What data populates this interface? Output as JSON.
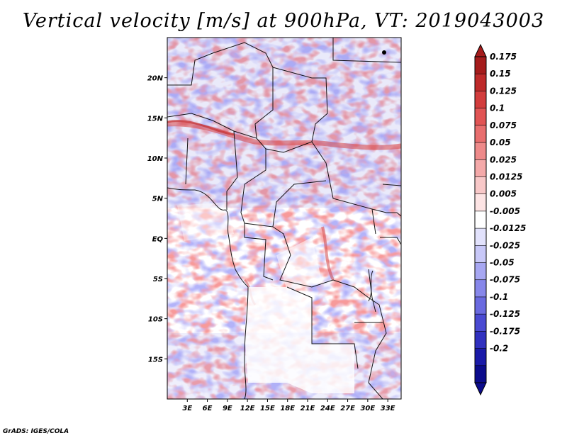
{
  "title": "Vertical velocity [m/s] at 900hPa, VT: 2019043003",
  "credit": "GrADS: IGES/COLA",
  "map": {
    "lon_range": [
      0,
      35
    ],
    "lat_range": [
      -20,
      25
    ],
    "lon_ticks": [
      "3E",
      "6E",
      "9E",
      "12E",
      "15E",
      "18E",
      "21E",
      "24E",
      "27E",
      "30E",
      "33E"
    ],
    "lat_ticks": [
      "20N",
      "15N",
      "10N",
      "5N",
      "EQ",
      "5S",
      "10S",
      "15S"
    ]
  },
  "colorbar": {
    "labels": [
      "0.175",
      "0.15",
      "0.125",
      "0.1",
      "0.075",
      "0.05",
      "0.025",
      "0.0125",
      "0.005",
      "-0.005",
      "-0.0125",
      "-0.025",
      "-0.05",
      "-0.075",
      "-0.1",
      "-0.125",
      "-0.175",
      "-0.2"
    ],
    "colors": [
      "#a51c1c",
      "#be2a2a",
      "#d23c3c",
      "#e15454",
      "#e86e6e",
      "#ee8a8a",
      "#f4a9a9",
      "#f8c8c8",
      "#fde4e4",
      "#ffffff",
      "#e2e2fc",
      "#c8c8f8",
      "#a7a7f2",
      "#8787ea",
      "#6a6ae0",
      "#4a4ad2",
      "#3030bf",
      "#1a1aa8",
      "#0c0c8c"
    ],
    "top_color": "#a51c1c",
    "bottom_color": "#0c0c8c"
  }
}
